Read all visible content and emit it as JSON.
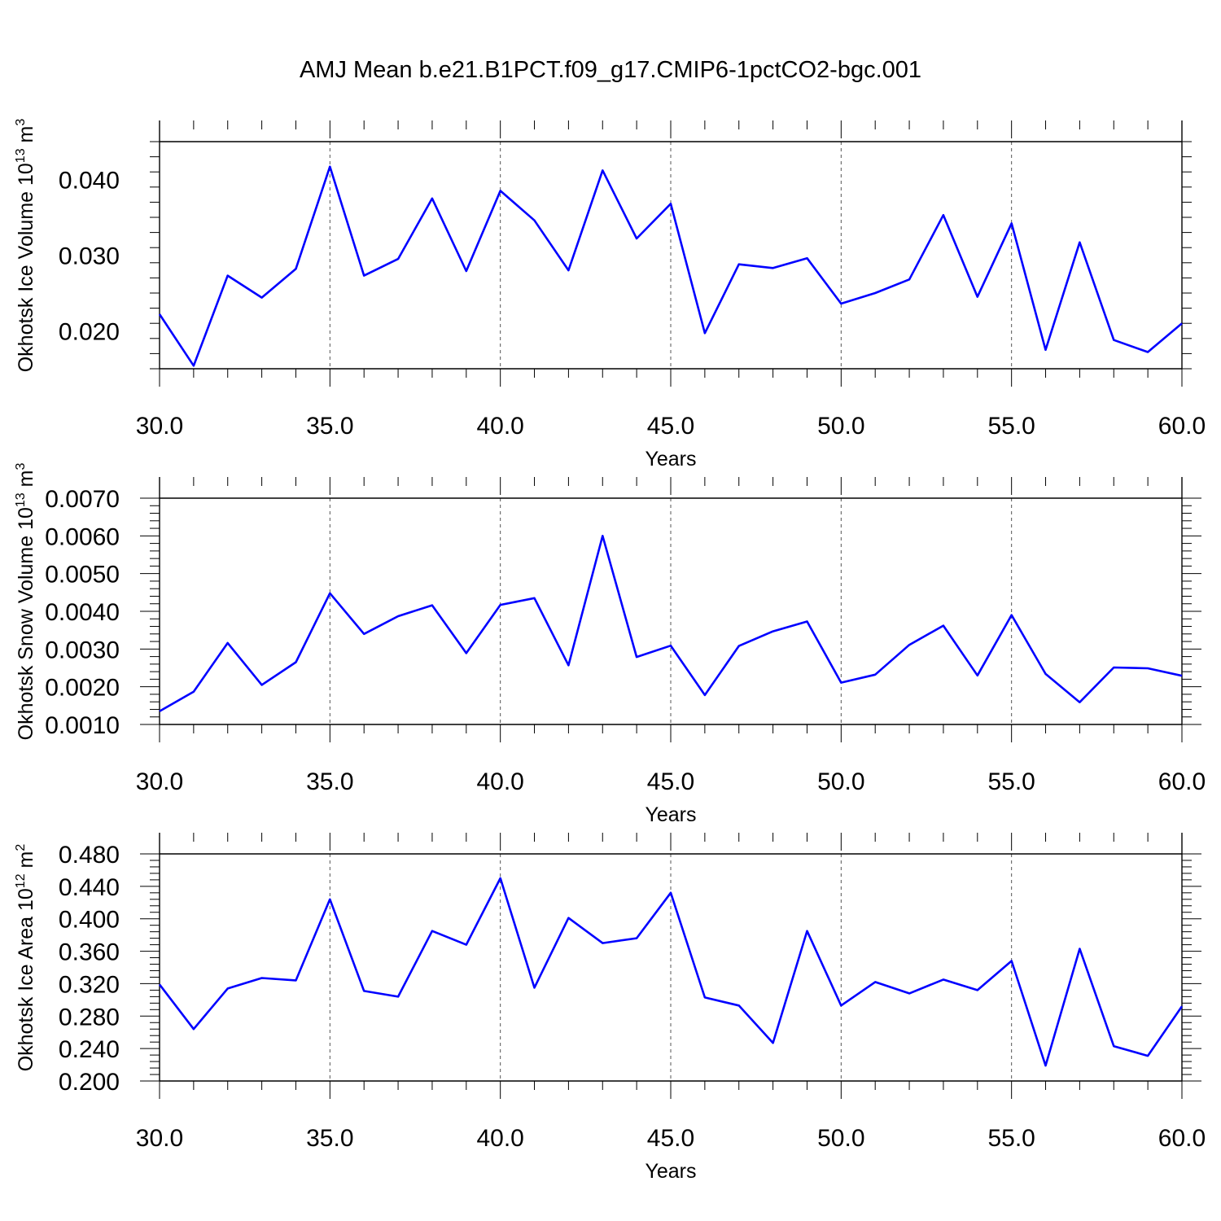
{
  "title": "AMJ Mean b.e21.B1PCT.f09_g17.CMIP6-1pctCO2-bgc.001",
  "colors": {
    "line": "#0000ff",
    "axis": "#000000",
    "grid": "#555555"
  },
  "chart_data": [
    {
      "type": "line",
      "title": "",
      "xlabel": "Years",
      "ylabel": "Okhotsk Ice Volume 10",
      "ylabel_exp": "13",
      "ylabel_unit": " m",
      "ylabel_unit_exp": "3",
      "xlim": [
        30,
        60
      ],
      "ylim": [
        0.015,
        0.045
      ],
      "x_ticks": [
        "30.0",
        "35.0",
        "40.0",
        "45.0",
        "50.0",
        "55.0",
        "60.0"
      ],
      "y_ticks": [
        {
          "v": 0.02,
          "label": "0.020"
        },
        {
          "v": 0.03,
          "label": "0.030"
        },
        {
          "v": 0.04,
          "label": "0.040"
        }
      ],
      "x": [
        30,
        31,
        32,
        33,
        34,
        35,
        36,
        37,
        38,
        39,
        40,
        41,
        42,
        43,
        44,
        45,
        46,
        47,
        48,
        49,
        50,
        51,
        52,
        53,
        54,
        55,
        56,
        57,
        58,
        59,
        60
      ],
      "y": [
        0.0222,
        0.0154,
        0.0273,
        0.0244,
        0.0282,
        0.0417,
        0.0273,
        0.0295,
        0.0375,
        0.0279,
        0.0385,
        0.0346,
        0.028,
        0.0412,
        0.0322,
        0.0368,
        0.0197,
        0.0288,
        0.0283,
        0.0296,
        0.0236,
        0.025,
        0.0268,
        0.0353,
        0.0245,
        0.0342,
        0.0175,
        0.0317,
        0.0188,
        0.0172,
        0.021
      ],
      "grid": "vertical dashed at major x ticks"
    },
    {
      "type": "line",
      "title": "",
      "xlabel": "Years",
      "ylabel": "Okhotsk Snow Volume 10",
      "ylabel_exp": "13",
      "ylabel_unit": " m",
      "ylabel_unit_exp": "3",
      "xlim": [
        30,
        60
      ],
      "ylim": [
        0.001,
        0.007
      ],
      "x_ticks": [
        "30.0",
        "35.0",
        "40.0",
        "45.0",
        "50.0",
        "55.0",
        "60.0"
      ],
      "y_ticks": [
        {
          "v": 0.001,
          "label": "0.0010"
        },
        {
          "v": 0.002,
          "label": "0.0020"
        },
        {
          "v": 0.003,
          "label": "0.0030"
        },
        {
          "v": 0.004,
          "label": "0.0040"
        },
        {
          "v": 0.005,
          "label": "0.0050"
        },
        {
          "v": 0.006,
          "label": "0.0060"
        },
        {
          "v": 0.007,
          "label": "0.0070"
        }
      ],
      "x": [
        30,
        31,
        32,
        33,
        34,
        35,
        36,
        37,
        38,
        39,
        40,
        41,
        42,
        43,
        44,
        45,
        46,
        47,
        48,
        49,
        50,
        51,
        52,
        53,
        54,
        55,
        56,
        57,
        58,
        59,
        60
      ],
      "y": [
        0.00135,
        0.00187,
        0.00316,
        0.00205,
        0.00265,
        0.00448,
        0.0034,
        0.00387,
        0.00416,
        0.00289,
        0.00417,
        0.00435,
        0.00257,
        0.006,
        0.00279,
        0.00309,
        0.00178,
        0.00308,
        0.00347,
        0.00373,
        0.00211,
        0.00232,
        0.00311,
        0.00362,
        0.0023,
        0.0039,
        0.00234,
        0.00159,
        0.00251,
        0.00249,
        0.00229
      ],
      "grid": "vertical dashed at major x ticks"
    },
    {
      "type": "line",
      "title": "",
      "xlabel": "Years",
      "ylabel": "Okhotsk Ice Area 10",
      "ylabel_exp": "12",
      "ylabel_unit": " m",
      "ylabel_unit_exp": "2",
      "xlim": [
        30,
        60
      ],
      "ylim": [
        0.2,
        0.48
      ],
      "x_ticks": [
        "30.0",
        "35.0",
        "40.0",
        "45.0",
        "50.0",
        "55.0",
        "60.0"
      ],
      "y_ticks": [
        {
          "v": 0.2,
          "label": "0.200"
        },
        {
          "v": 0.24,
          "label": "0.240"
        },
        {
          "v": 0.28,
          "label": "0.280"
        },
        {
          "v": 0.32,
          "label": "0.320"
        },
        {
          "v": 0.36,
          "label": "0.360"
        },
        {
          "v": 0.4,
          "label": "0.400"
        },
        {
          "v": 0.44,
          "label": "0.440"
        },
        {
          "v": 0.48,
          "label": "0.480"
        }
      ],
      "x": [
        30,
        31,
        32,
        33,
        34,
        35,
        36,
        37,
        38,
        39,
        40,
        41,
        42,
        43,
        44,
        45,
        46,
        47,
        48,
        49,
        50,
        51,
        52,
        53,
        54,
        55,
        56,
        57,
        58,
        59,
        60
      ],
      "y": [
        0.319,
        0.264,
        0.314,
        0.327,
        0.324,
        0.424,
        0.311,
        0.304,
        0.385,
        0.368,
        0.45,
        0.315,
        0.401,
        0.37,
        0.376,
        0.432,
        0.303,
        0.293,
        0.247,
        0.385,
        0.293,
        0.322,
        0.308,
        0.325,
        0.312,
        0.348,
        0.219,
        0.363,
        0.243,
        0.231,
        0.292
      ],
      "grid": "vertical dashed at major x ticks"
    }
  ]
}
